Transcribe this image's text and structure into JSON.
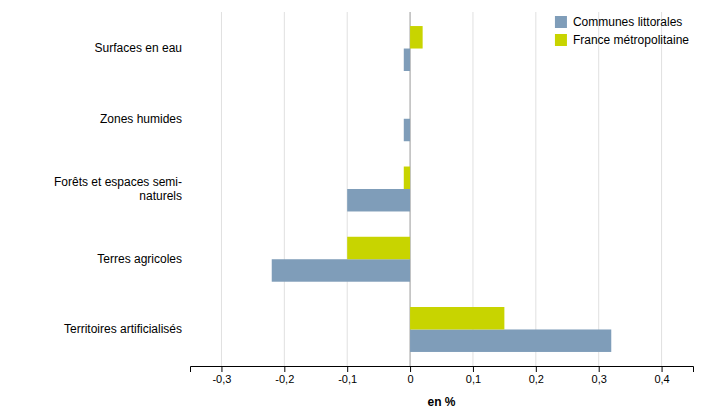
{
  "chart_data": {
    "type": "bar",
    "orientation": "horizontal",
    "categories": [
      "Territoires artificialisés",
      "Terres agricoles",
      "Forêts et espaces semi-\nnaturels",
      "Zones humides",
      "Surfaces en eau"
    ],
    "series": [
      {
        "name": "Communes littorales",
        "color": "#7f9db9",
        "values": [
          0.32,
          -0.22,
          -0.1,
          -0.01,
          -0.01
        ]
      },
      {
        "name": "France métropolitaine",
        "color": "#c8d400",
        "values": [
          0.15,
          -0.1,
          -0.01,
          0.0,
          0.02
        ]
      }
    ],
    "xlabel": "en %",
    "xlim": [
      -0.35,
      0.45
    ],
    "xticks": [
      {
        "value": -0.3,
        "label": "-0,3"
      },
      {
        "value": -0.2,
        "label": "-0,2"
      },
      {
        "value": -0.1,
        "label": "-0,1"
      },
      0,
      {
        "value": 0.1,
        "label": "0,1"
      },
      {
        "value": 0.2,
        "label": "0,2"
      },
      {
        "value": 0.3,
        "label": "0,3"
      },
      {
        "value": 0.4,
        "label": "0,4"
      }
    ],
    "grid": true,
    "legend": "upper right"
  }
}
